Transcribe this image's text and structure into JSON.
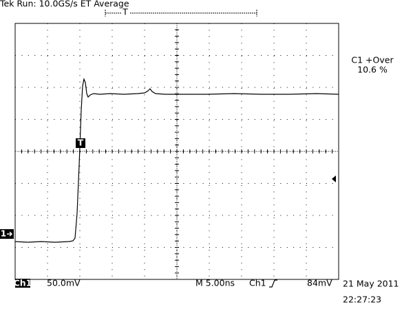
{
  "header": {
    "status": "Tek Run: 10.0GS/s ET Average",
    "trigger_position_marker": "T"
  },
  "measurement": {
    "label": "C1 +Over",
    "value": "10.6 %"
  },
  "markers": {
    "channel": "1",
    "trigger": "T"
  },
  "footer": {
    "channel": "Ch1",
    "scale": "50.0mV",
    "timebase": "M 5.00ns",
    "trigger_source": "Ch1",
    "trigger_level": "84mV",
    "date": "21 May 2011",
    "time": "22:27:23"
  }
}
